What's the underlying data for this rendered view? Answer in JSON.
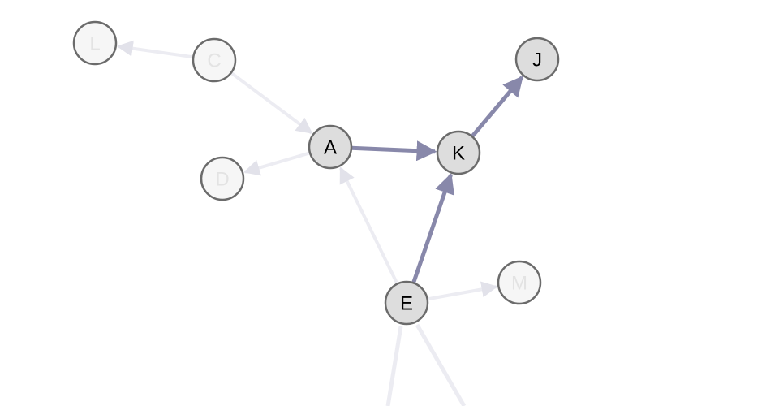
{
  "graph": {
    "nodes": [
      {
        "id": "L",
        "label": "L",
        "faded": true
      },
      {
        "id": "C",
        "label": "C",
        "faded": true
      },
      {
        "id": "A",
        "label": "A",
        "faded": false
      },
      {
        "id": "D",
        "label": "D",
        "faded": true
      },
      {
        "id": "K",
        "label": "K",
        "faded": false
      },
      {
        "id": "J",
        "label": "J",
        "faded": false
      },
      {
        "id": "E",
        "label": "E",
        "faded": false
      },
      {
        "id": "M",
        "label": "M",
        "faded": true
      }
    ],
    "edges": [
      {
        "from": "C",
        "to": "L",
        "faded": true
      },
      {
        "from": "C",
        "to": "A",
        "faded": true
      },
      {
        "from": "A",
        "to": "D",
        "faded": true
      },
      {
        "from": "E",
        "to": "A",
        "faded": true
      },
      {
        "from": "E",
        "to": "M",
        "faded": true
      },
      {
        "from": "A",
        "to": "K",
        "faded": false
      },
      {
        "from": "K",
        "to": "J",
        "faded": false
      },
      {
        "from": "E",
        "to": "K",
        "faded": false
      }
    ],
    "colors": {
      "highlight_edge": "#8888aa",
      "faded_edge": "#ececf2",
      "node_fill": "#dddddd",
      "node_stroke": "#6b6b6b",
      "node_label": "#000000",
      "faded_node_fill": "#f6f6f6",
      "faded_node_stroke": "#e6e6e6",
      "faded_label": "#e3e3e3"
    }
  }
}
